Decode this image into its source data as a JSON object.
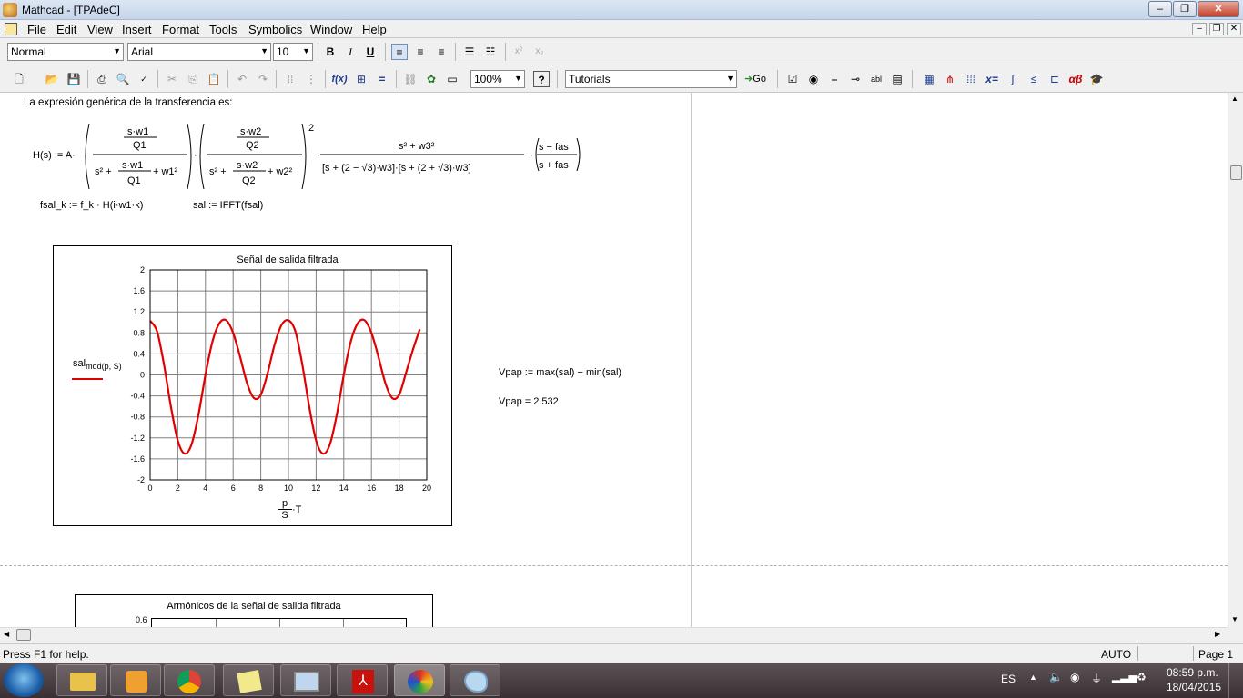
{
  "window": {
    "title": "Mathcad - [TPAdeC]"
  },
  "menu": [
    "File",
    "Edit",
    "View",
    "Insert",
    "Format",
    "Tools",
    "Symbolics",
    "Window",
    "Help"
  ],
  "format_toolbar": {
    "style": "Normal",
    "font": "Arial",
    "size": "10",
    "bold": "B",
    "italic": "I",
    "underline": "U"
  },
  "standard_toolbar": {
    "zoom": "100%",
    "resource": "Tutorials",
    "go_label": "Go"
  },
  "worksheet": {
    "intro_text": "La expresión genérica de la transferencia es:",
    "fsal_def": "fsal_k := f_k · H(i·w1·k)",
    "sal_def": "sal := IFFT(fsal)",
    "vpap_def": "Vpap := max(sal) − min(sal)",
    "vpap_result": "Vpap = 2.532",
    "plot_ylabel": "sal",
    "plot_ylabel_sub": "mod(p, S)",
    "plot_xlabel_num": "p",
    "plot_xlabel_den": "S",
    "plot_xlabel_tail": "·T",
    "plot2_title": "Armónicos de la señal de salida filtrada",
    "plot2_first_tick": "0.6"
  },
  "chart_data": {
    "type": "line",
    "title": "Señal de salida filtrada",
    "xlim": [
      0,
      20
    ],
    "ylim": [
      -2,
      2
    ],
    "x_ticks": [
      "0",
      "2",
      "4",
      "6",
      "8",
      "10",
      "12",
      "14",
      "16",
      "18",
      "20"
    ],
    "y_ticks": [
      "2",
      "1.6",
      "1.2",
      "0.8",
      "0.4",
      "0",
      "-0.4",
      "-0.8",
      "-1.2",
      "-1.6",
      "-2"
    ],
    "grid": true,
    "series": [
      {
        "color": "#e00000",
        "x": [
          0,
          0.5,
          1,
          1.5,
          2,
          2.5,
          3,
          3.5,
          4,
          4.5,
          5,
          5.5,
          6,
          6.5,
          7,
          7.5,
          8,
          8.5,
          9,
          9.5,
          10,
          10.5,
          11,
          11.5,
          12,
          12.5,
          13,
          13.5,
          14,
          14.5,
          15,
          15.5,
          16,
          16.5,
          17,
          17.5,
          18,
          18.5,
          19,
          19.5
        ],
        "y": [
          1.03,
          0.83,
          0.2,
          -0.6,
          -1.25,
          -1.5,
          -1.32,
          -0.75,
          0.0,
          0.63,
          0.98,
          1.04,
          0.8,
          0.35,
          -0.15,
          -0.44,
          -0.38,
          0.04,
          0.58,
          0.95,
          1.04,
          0.83,
          0.2,
          -0.6,
          -1.25,
          -1.5,
          -1.32,
          -0.75,
          0.0,
          0.63,
          0.98,
          1.04,
          0.8,
          0.35,
          -0.15,
          -0.44,
          -0.38,
          0.04,
          0.48,
          0.87
        ]
      }
    ]
  },
  "status": {
    "help": "Press F1 for help.",
    "mode": "AUTO",
    "page": "Page 1"
  },
  "tray": {
    "lang": "ES",
    "time": "08:59 p.m.",
    "date": "18/04/2015"
  }
}
